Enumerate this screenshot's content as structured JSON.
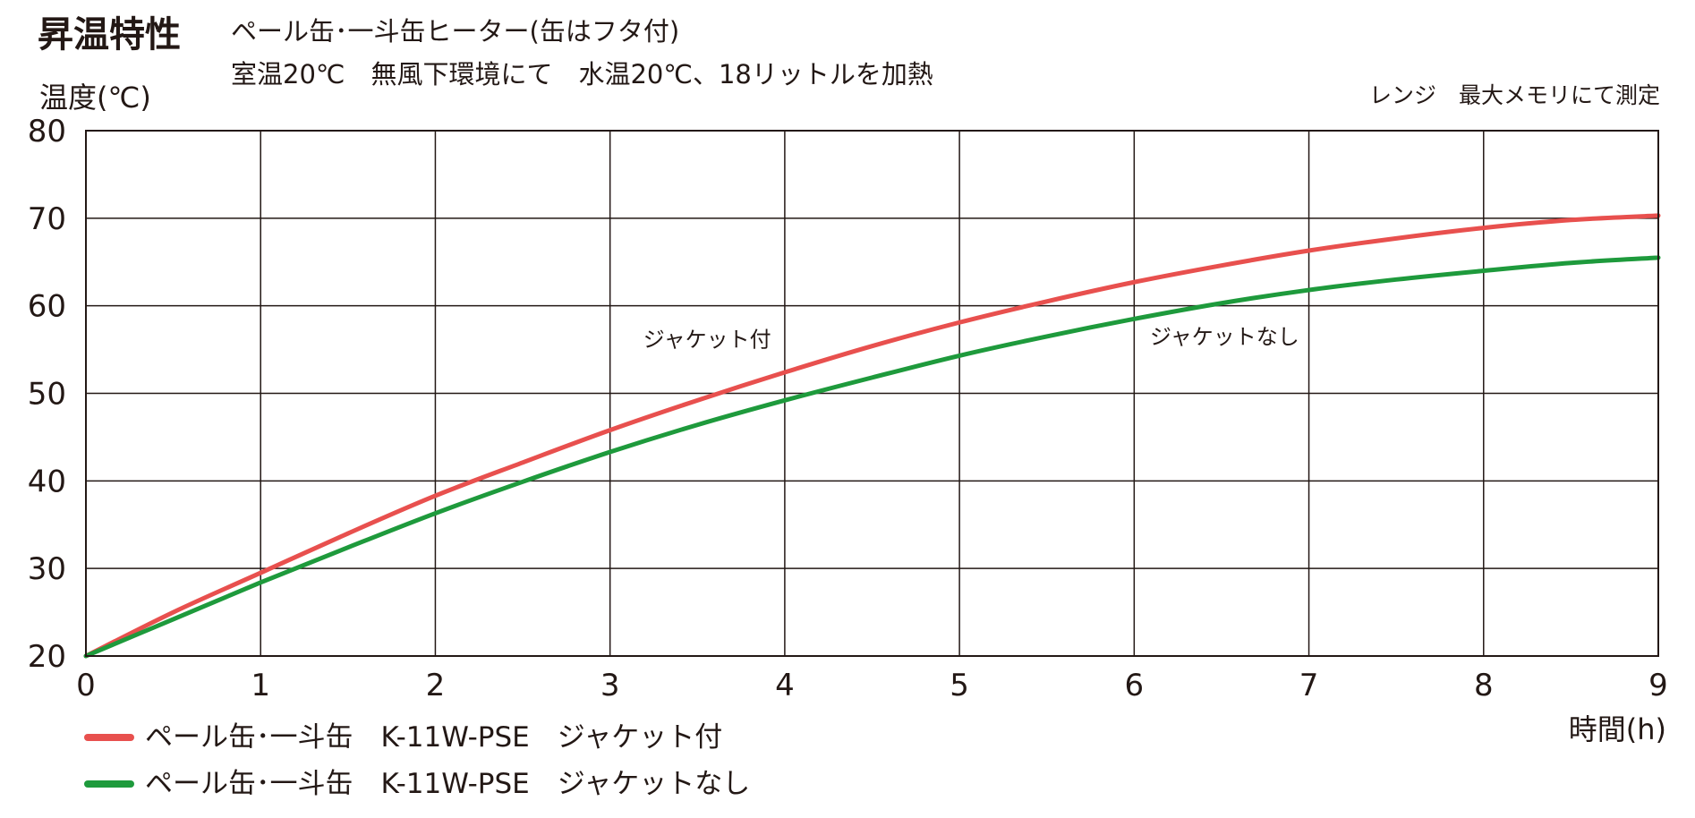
{
  "header": {
    "title": "昇温特性",
    "subtitle_line1": "ペール缶･一斗缶ヒーター(缶はフタ付)",
    "subtitle_line2": "室温20℃　無風下環境にて　水温20℃、18リットルを加熱",
    "note": "レンジ　最大メモリにて測定"
  },
  "chart_data": {
    "type": "line",
    "ylabel": "温度(℃)",
    "xlabel": "時間(h)",
    "xlim": [
      0,
      9
    ],
    "ylim": [
      20,
      80
    ],
    "x_ticks": [
      "0",
      "1",
      "2",
      "3",
      "4",
      "5",
      "6",
      "7",
      "8",
      "9"
    ],
    "y_ticks": [
      "20",
      "30",
      "40",
      "50",
      "60",
      "70",
      "80"
    ],
    "grid": true,
    "legend_position": "bottom-left",
    "x": [
      0,
      0.5,
      1,
      1.5,
      2,
      2.5,
      3,
      3.5,
      4,
      4.5,
      5,
      5.5,
      6,
      6.5,
      7,
      7.5,
      8,
      8.5,
      9
    ],
    "series": [
      {
        "name": "ペール缶･一斗缶　K-11W-PSE　ジャケット付",
        "color": "#e8504e",
        "annotation": "ジャケット付",
        "values": [
          20,
          25,
          29.5,
          34,
          38.3,
          42.1,
          45.8,
          49.2,
          52.4,
          55.4,
          58.1,
          60.5,
          62.7,
          64.6,
          66.3,
          67.7,
          68.9,
          69.8,
          70.3
        ]
      },
      {
        "name": "ペール缶･一斗缶　K-11W-PSE　ジャケットなし",
        "color": "#1e9a3c",
        "annotation": "ジャケットなし",
        "values": [
          20,
          24.2,
          28.4,
          32.4,
          36.3,
          39.9,
          43.3,
          46.4,
          49.2,
          51.8,
          54.3,
          56.5,
          58.5,
          60.3,
          61.8,
          63,
          64,
          64.9,
          65.5
        ]
      }
    ]
  }
}
